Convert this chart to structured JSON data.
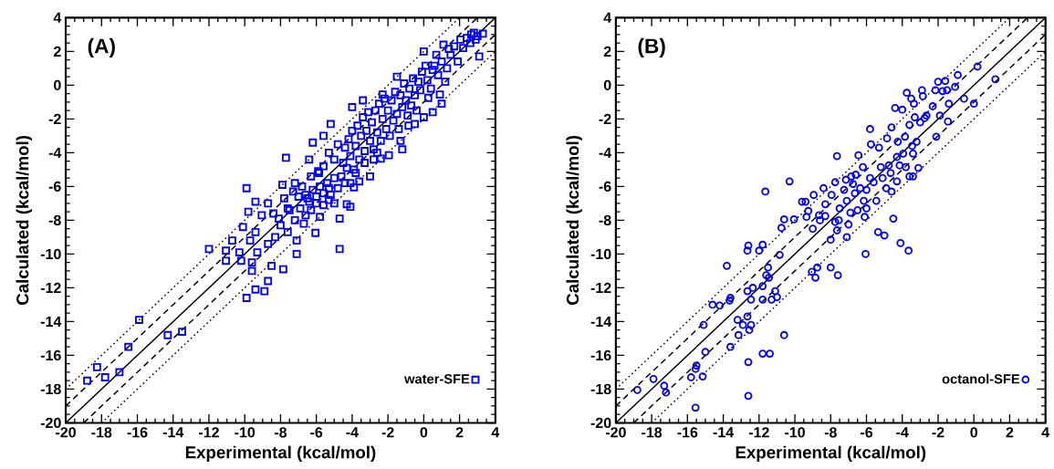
{
  "chart_data": [
    {
      "type": "scatter",
      "title": "(A)",
      "xlabel": "Experimental (kcal/mol)",
      "ylabel": "Calculated (kcal/mol)",
      "xlim": [
        -20,
        4
      ],
      "ylim": [
        -20,
        4
      ],
      "xticks": [
        -20,
        -18,
        -16,
        -14,
        -12,
        -10,
        -8,
        -6,
        -4,
        -2,
        0,
        2,
        4
      ],
      "yticks": [
        -20,
        -18,
        -16,
        -14,
        -12,
        -10,
        -8,
        -6,
        -4,
        -2,
        0,
        2,
        4
      ],
      "legend": "bottom right",
      "series": [
        {
          "name": "water-SFE",
          "marker": "square",
          "color": "#0000ff",
          "x": [
            -18.8,
            -18.25,
            -17.8,
            -17.0,
            -16.5,
            -15.9,
            -14.3,
            -13.5,
            -12.0,
            -11.05,
            -11.05,
            -10.7,
            -10.3,
            -10.2,
            -9.9,
            -9.9,
            -10.1,
            -9.8,
            -9.7,
            -9.6,
            -9.6,
            -9.4,
            -9.4,
            -9.4,
            -9.3,
            -9.05,
            -8.9,
            -8.7,
            -8.7,
            -8.7,
            -8.5,
            -8.3,
            -8.1,
            -7.9,
            -7.85,
            -7.8,
            -7.7,
            -7.6,
            -7.5,
            -7.2,
            -7.1,
            -7.1,
            -6.7,
            -6.4,
            -6.5,
            -6.2,
            -6.05,
            -5.8,
            -5.85,
            -5.6,
            -5.2,
            -5.3,
            -5.0,
            -4.7,
            -4.7,
            -4.3,
            -4.1,
            -4.1,
            -4.0,
            -3.9,
            -3.6,
            -3.4,
            -3.0,
            -2.8,
            -2.4,
            -2.3,
            -1.95,
            -1.5,
            -1.3,
            -1.2,
            -0.85,
            -0.5,
            0.0,
            0.0,
            0.1,
            0.25,
            0.5,
            0.6,
            0.7,
            0.9,
            1.0,
            1.2,
            1.1,
            1.4,
            1.9,
            2.05,
            2.65,
            3.1,
            3.3,
            2.9,
            -7.3,
            -7.0,
            -6.8,
            -6.6,
            -6.4,
            -6.2,
            -6.0,
            -5.8,
            -5.6,
            -5.4,
            -5.2,
            -5.0,
            -4.8,
            -4.6,
            -4.5,
            -4.4,
            -4.3,
            -4.2,
            -4.1,
            -4.0,
            -3.9,
            -3.8,
            -3.7,
            -3.6,
            -3.5,
            -3.4,
            -3.3,
            -3.2,
            -3.1,
            -3.0,
            -2.9,
            -2.8,
            -2.7,
            -2.6,
            -2.5,
            -2.4,
            -2.3,
            -2.2,
            -2.1,
            -2.0,
            -1.9,
            -1.8,
            -1.7,
            -1.6,
            -1.5,
            -1.4,
            -1.3,
            -1.2,
            -1.1,
            -1.0,
            -0.9,
            -0.8,
            -0.7,
            -0.6,
            -0.5,
            -0.4,
            -0.3,
            -0.2,
            -0.1,
            0.2,
            0.4,
            0.5,
            0.8,
            1.0,
            1.3,
            1.5,
            1.7,
            2.2,
            2.4,
            2.6,
            2.8,
            3.0,
            -5.6,
            -5.3,
            -5.0,
            -4.8,
            -6.3,
            -5.9,
            -4.4,
            -3.8,
            -3.3,
            -2.6,
            -7.6,
            -7.2,
            -6.9,
            -6.6,
            -6.3,
            -6.0,
            -5.6,
            -5.3,
            -8.4,
            -8.0
          ],
          "values": [
            -17.5,
            -16.7,
            -17.3,
            -17.0,
            -15.5,
            -13.9,
            -14.8,
            -14.6,
            -9.7,
            -9.8,
            -10.4,
            -9.2,
            -9.9,
            -10.4,
            -6.1,
            -12.6,
            -8.4,
            -7.5,
            -9.2,
            -11.0,
            -10.5,
            -8.7,
            -12.1,
            -6.9,
            -9.9,
            -7.7,
            -12.2,
            -11.6,
            -7.0,
            -9.4,
            -10.7,
            -9.0,
            -7.9,
            -5.9,
            -10.9,
            -6.7,
            -4.3,
            -8.7,
            -7.4,
            -5.8,
            -9.2,
            -10.0,
            -8.2,
            -4.4,
            -6.7,
            -3.4,
            -8.75,
            -7.8,
            -5.2,
            -3.0,
            -2.3,
            -6.1,
            -7.0,
            -7.9,
            -9.7,
            -7.05,
            -7.2,
            -5.8,
            -1.3,
            -6.05,
            -5.7,
            -0.9,
            -5.4,
            -4.4,
            -4.35,
            -0.55,
            -4.15,
            0.5,
            -3.3,
            -3.8,
            -2.4,
            -2.3,
            -1.9,
            2.0,
            1.15,
            -0.75,
            -1.6,
            1.15,
            1.8,
            -0.55,
            -1.1,
            0.2,
            2.4,
            2.15,
            1.4,
            2.7,
            3.0,
            1.7,
            3.05,
            2.7,
            -6.3,
            -6.6,
            -6.0,
            -6.5,
            -6.9,
            -6.2,
            -6.6,
            -6.0,
            -6.4,
            -5.8,
            -6.5,
            -5.5,
            -6.1,
            -5.4,
            -4.6,
            -3.7,
            -4.9,
            -3.2,
            -4.2,
            -2.7,
            -5.0,
            -3.6,
            -2.4,
            -4.4,
            -3.0,
            -1.9,
            -3.9,
            -2.7,
            -1.6,
            -3.3,
            -2.2,
            -3.8,
            -1.5,
            -2.8,
            -1.1,
            -3.3,
            -2.0,
            -0.8,
            -2.6,
            -1.5,
            -3.0,
            -0.9,
            -2.1,
            -0.4,
            -1.7,
            -2.6,
            -0.6,
            -1.3,
            0.1,
            -0.9,
            -1.8,
            -0.2,
            -1.2,
            0.4,
            -0.6,
            -1.5,
            0.2,
            -0.3,
            0.8,
            0.3,
            -0.2,
            0.9,
            0.6,
            1.4,
            1.0,
            1.8,
            2.3,
            2.2,
            2.8,
            2.5,
            3.1,
            2.9,
            -4.8,
            -4.0,
            -4.4,
            -3.5,
            -5.4,
            -5.1,
            -5.8,
            -5.2,
            -4.6,
            -4.0,
            -7.3,
            -8.0,
            -7.3,
            -7.7,
            -7.4,
            -7.0,
            -7.1,
            -6.8,
            -7.6,
            -8.3
          ]
        },
        {
          "type": "line",
          "color": "#000000",
          "line_style": "solid",
          "x": [
            -20,
            4
          ],
          "values": [
            -20,
            4
          ]
        },
        {
          "type": "line",
          "color": "#000000",
          "line_style": "dashed",
          "x": [
            -20,
            3
          ],
          "values": [
            -19,
            4
          ]
        },
        {
          "type": "line",
          "color": "#000000",
          "line_style": "dashed",
          "x": [
            -19,
            4
          ],
          "values": [
            -20,
            3
          ]
        },
        {
          "type": "line",
          "color": "#000000",
          "line_style": "dotted",
          "x": [
            -20,
            2
          ],
          "values": [
            -18,
            4
          ]
        },
        {
          "type": "line",
          "color": "#000000",
          "line_style": "dotted",
          "x": [
            -18,
            4
          ],
          "values": [
            -20,
            2
          ]
        }
      ]
    },
    {
      "type": "scatter",
      "title": "(B)",
      "xlabel": "Experimental (kcal/mol)",
      "ylabel": "Calculated (kcal/mol)",
      "xlim": [
        -20,
        4
      ],
      "ylim": [
        -20,
        4
      ],
      "xticks": [
        -20,
        -18,
        -16,
        -14,
        -12,
        -10,
        -8,
        -6,
        -4,
        -2,
        0,
        2,
        4
      ],
      "yticks": [
        -20,
        -18,
        -16,
        -14,
        -12,
        -10,
        -8,
        -6,
        -4,
        -2,
        0,
        2,
        4
      ],
      "legend": "bottom right",
      "series": [
        {
          "name": "octanol-SFE",
          "marker": "circle",
          "color": "#0000ff",
          "x": [
            -18.8,
            -17.9,
            -17.3,
            -17.2,
            -15.8,
            -15.55,
            -15.55,
            -15.5,
            -15.15,
            -15.1,
            -15.0,
            -14.6,
            -14.2,
            -13.8,
            -13.65,
            -13.6,
            -13.6,
            -13.2,
            -13.15,
            -12.9,
            -12.65,
            -12.65,
            -12.65,
            -12.6,
            -12.6,
            -12.6,
            -12.55,
            -12.45,
            -12.45,
            -12.35,
            -12.0,
            -11.8,
            -11.8,
            -11.8,
            -11.8,
            -11.65,
            -11.6,
            -11.5,
            -11.45,
            -11.4,
            -11.3,
            -11.1,
            -11.0,
            -10.85,
            -10.75,
            -10.6,
            -10.6,
            -10.3,
            -10.05,
            -9.6,
            -9.4,
            -9.35,
            -9.25,
            -9.0,
            -9.05,
            -8.95,
            -8.85,
            -8.75,
            -8.65,
            -8.6,
            -8.4,
            -8.3,
            -8.3,
            -8.0,
            -8.0,
            -7.95,
            -7.75,
            -7.75,
            -7.65,
            -7.6,
            -7.65,
            -7.55,
            -7.5,
            -7.25,
            -7.15,
            -7.1,
            -7.1,
            -7.0,
            -6.9,
            -6.85,
            -6.75,
            -6.65,
            -6.6,
            -6.5,
            -6.45,
            -6.35,
            -6.2,
            -6.15,
            -6.1,
            -6.0,
            -6.05,
            -6.0,
            -5.8,
            -5.8,
            -5.75,
            -5.6,
            -5.45,
            -5.35,
            -5.3,
            -5.2,
            -5.1,
            -5.0,
            -4.9,
            -4.85,
            -4.75,
            -4.65,
            -4.6,
            -4.6,
            -4.5,
            -4.4,
            -4.3,
            -4.3,
            -4.25,
            -4.15,
            -4.1,
            -4.0,
            -3.95,
            -3.85,
            -3.8,
            -3.75,
            -3.65,
            -3.6,
            -3.6,
            -3.5,
            -3.45,
            -3.4,
            -3.35,
            -3.4,
            -3.3,
            -3.2,
            -3.1,
            -3.0,
            -2.9,
            -2.85,
            -2.75,
            -2.65,
            -2.3,
            -2.15,
            -2.1,
            -2.0,
            -1.9,
            -1.75,
            -1.6,
            -1.5,
            -1.45,
            -1.4,
            -1.05,
            -0.9,
            -0.55,
            0.0,
            0.2,
            1.2
          ],
          "values": [
            -18.05,
            -17.4,
            -17.8,
            -18.2,
            -17.3,
            -16.8,
            -19.1,
            -16.6,
            -17.25,
            -14.2,
            -15.8,
            -13.0,
            -13.05,
            -10.7,
            -12.75,
            -12.6,
            -15.5,
            -13.9,
            -14.8,
            -14.2,
            -13.7,
            -12.2,
            -9.8,
            -9.5,
            -16.4,
            -18.4,
            -14.5,
            -14.2,
            -12.7,
            -12.0,
            -9.8,
            -11.9,
            -9.45,
            -12.7,
            -15.9,
            -6.3,
            -11.25,
            -10.8,
            -11.4,
            -15.9,
            -12.7,
            -12.2,
            -12.55,
            -10.05,
            -8.45,
            -7.95,
            -14.8,
            -5.7,
            -7.95,
            -6.9,
            -6.9,
            -7.8,
            -7.45,
            -8.5,
            -11.05,
            -6.5,
            -11.4,
            -10.8,
            -7.7,
            -8.0,
            -6.1,
            -7.75,
            -7.05,
            -10.8,
            -9.15,
            -6.5,
            -5.75,
            -8.1,
            -4.2,
            -11.25,
            -8.6,
            -8.0,
            -7.3,
            -6.2,
            -5.6,
            -9.0,
            -6.85,
            -8.25,
            -7.55,
            -5.4,
            -5.85,
            -6.4,
            -5.3,
            -7.4,
            -4.15,
            -6.1,
            -4.85,
            -6.85,
            -7.8,
            -7.3,
            -10.0,
            -6.2,
            -2.6,
            -5.5,
            -3.5,
            -5.75,
            -6.85,
            -8.7,
            -3.7,
            -4.85,
            -5.5,
            -8.9,
            -6.1,
            -3.15,
            -4.75,
            -5.2,
            -6.3,
            -2.5,
            -7.9,
            -1.35,
            -4.25,
            -5.7,
            -3.35,
            -4.75,
            -9.35,
            -1.45,
            -4.05,
            -3.05,
            -4.85,
            -0.45,
            -9.8,
            -2.35,
            -5.4,
            -0.8,
            -3.6,
            -4.05,
            -1.1,
            -5.4,
            -1.9,
            -3.35,
            -4.9,
            -2.2,
            -0.3,
            -0.65,
            -1.95,
            -1.8,
            -1.25,
            -0.3,
            -3.05,
            0.2,
            -1.8,
            -0.35,
            0.25,
            -0.3,
            -2.15,
            -1.1,
            -0.1,
            0.6,
            -0.8,
            -1.1,
            1.1,
            0.35
          ]
        },
        {
          "type": "line",
          "color": "#000000",
          "line_style": "solid",
          "x": [
            -20,
            4
          ],
          "values": [
            -20,
            4
          ]
        },
        {
          "type": "line",
          "color": "#000000",
          "line_style": "dashed",
          "x": [
            -20,
            3
          ],
          "values": [
            -19,
            4
          ]
        },
        {
          "type": "line",
          "color": "#000000",
          "line_style": "dashed",
          "x": [
            -19,
            4
          ],
          "values": [
            -20,
            3
          ]
        },
        {
          "type": "line",
          "color": "#000000",
          "line_style": "dotted",
          "x": [
            -20,
            2
          ],
          "values": [
            -18,
            4
          ]
        },
        {
          "type": "line",
          "color": "#000000",
          "line_style": "dotted",
          "x": [
            -18,
            4
          ],
          "values": [
            -20,
            2
          ]
        }
      ]
    }
  ]
}
